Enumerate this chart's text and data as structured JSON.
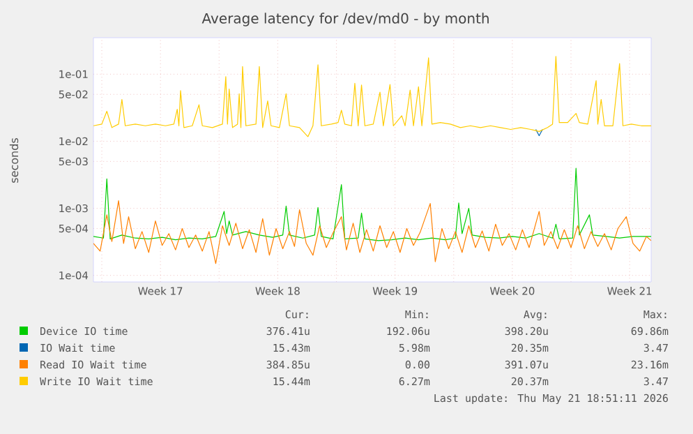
{
  "chart_data": {
    "type": "line",
    "title": "Average latency for /dev/md0 - by month",
    "ylabel": "seconds",
    "log": "y",
    "grid": true,
    "legend": "bottom",
    "xlim": [
      "2026-04-18T12:00",
      "2026-05-21T18:51"
    ],
    "ylim": [
      8e-05,
      0.35
    ],
    "xticks": [
      {
        "value": "2026-04-19",
        "label": null
      },
      {
        "value": "2026-04-22T12:00",
        "label": "Week 17"
      },
      {
        "value": "2026-04-26",
        "label": null
      },
      {
        "value": "2026-04-29T12:00",
        "label": "Week 18"
      },
      {
        "value": "2026-05-03",
        "label": null
      },
      {
        "value": "2026-05-06T12:00",
        "label": "Week 19"
      },
      {
        "value": "2026-05-10",
        "label": null
      },
      {
        "value": "2026-05-13T12:00",
        "label": "Week 20"
      },
      {
        "value": "2026-05-17",
        "label": null
      },
      {
        "value": "2026-05-20T12:00",
        "label": "Week 21"
      }
    ],
    "yticks": [
      {
        "value": 0.0001,
        "label": "1e-04"
      },
      {
        "value": 0.0005,
        "label": "5e-04"
      },
      {
        "value": 0.001,
        "label": "1e-03"
      },
      {
        "value": 0.005,
        "label": "5e-03"
      },
      {
        "value": 0.01,
        "label": "1e-02"
      },
      {
        "value": 0.05,
        "label": "5e-02"
      },
      {
        "value": 0.1,
        "label": "1e-01"
      }
    ],
    "series": [
      {
        "name": "Device IO time",
        "color": "#00cc00",
        "x": [
          "2026-04-18T12:00",
          "2026-04-19T02:24",
          "2026-04-19T07:12",
          "2026-04-19T12:00",
          "2026-04-20T04:48",
          "2026-04-21T00:00",
          "2026-04-21T19:12",
          "2026-04-22T14:24",
          "2026-04-23T09:36",
          "2026-04-24T04:48",
          "2026-04-25T00:00",
          "2026-04-25T19:12",
          "2026-04-26T07:12",
          "2026-04-26T10:48",
          "2026-04-26T14:24",
          "2026-04-26T19:12",
          "2026-04-27T14:24",
          "2026-04-28T09:36",
          "2026-04-29T04:48",
          "2026-04-29T19:12",
          "2026-04-30T00:00",
          "2026-04-30T04:48",
          "2026-05-01T00:00",
          "2026-05-01T16:48",
          "2026-05-01T21:36",
          "2026-05-02T02:24",
          "2026-05-02T19:12",
          "2026-05-03T07:12",
          "2026-05-03T12:00",
          "2026-05-04T07:12",
          "2026-05-04T12:00",
          "2026-05-04T16:48",
          "2026-05-05T12:00",
          "2026-05-06T07:12",
          "2026-05-07T02:24",
          "2026-05-07T21:36",
          "2026-05-08T16:48",
          "2026-05-09T12:00",
          "2026-05-10T02:24",
          "2026-05-10T07:12",
          "2026-05-10T12:00",
          "2026-05-10T21:36",
          "2026-05-11T02:24",
          "2026-05-11T21:36",
          "2026-05-12T16:48",
          "2026-05-13T12:00",
          "2026-05-14T07:12",
          "2026-05-15T02:24",
          "2026-05-15T21:36",
          "2026-05-16T02:24",
          "2026-05-16T07:12",
          "2026-05-17T02:24",
          "2026-05-17T07:12",
          "2026-05-17T12:00",
          "2026-05-18T02:24",
          "2026-05-18T07:12",
          "2026-05-19T02:24",
          "2026-05-19T21:36",
          "2026-05-20T16:48",
          "2026-05-21T18:51"
        ],
        "values": [
          0.00038,
          0.00036,
          0.00275,
          0.00035,
          0.0004,
          0.00036,
          0.00035,
          0.00037,
          0.00034,
          0.00036,
          0.00035,
          0.00038,
          0.0009,
          0.00042,
          0.00065,
          0.0004,
          0.00045,
          0.0004,
          0.00037,
          0.0004,
          0.00108,
          0.0004,
          0.00036,
          0.0004,
          0.00103,
          0.00038,
          0.00035,
          0.00226,
          0.00035,
          0.00036,
          0.00085,
          0.00035,
          0.00033,
          0.00034,
          0.00036,
          0.00034,
          0.00036,
          0.00034,
          0.00036,
          0.0012,
          0.00042,
          0.001,
          0.0004,
          0.00037,
          0.00036,
          0.00038,
          0.00036,
          0.00042,
          0.00036,
          0.00058,
          0.00035,
          0.00036,
          0.00395,
          0.0004,
          0.0008,
          0.0004,
          0.00038,
          0.00036,
          0.00038,
          0.00038
        ]
      },
      {
        "name": "IO Wait time",
        "color": "#0066b3",
        "x": [
          "2026-05-14T21:36",
          "2026-05-15T02:24",
          "2026-05-15T07:12"
        ],
        "values": [
          0.015,
          0.0121,
          0.015
        ]
      },
      {
        "name": "Read IO Wait time",
        "color": "#ff8000",
        "x": [
          "2026-04-18T12:00",
          "2026-04-18T21:36",
          "2026-04-19T07:12",
          "2026-04-19T14:24",
          "2026-04-20T00:00",
          "2026-04-20T07:12",
          "2026-04-20T14:24",
          "2026-04-21T00:00",
          "2026-04-21T09:36",
          "2026-04-21T19:12",
          "2026-04-22T04:48",
          "2026-04-22T14:24",
          "2026-04-23T00:00",
          "2026-04-23T09:36",
          "2026-04-23T19:12",
          "2026-04-24T04:48",
          "2026-04-24T14:24",
          "2026-04-25T00:00",
          "2026-04-25T09:36",
          "2026-04-25T19:12",
          "2026-04-26T04:48",
          "2026-04-26T14:24",
          "2026-04-27T00:00",
          "2026-04-27T09:36",
          "2026-04-27T19:12",
          "2026-04-28T04:48",
          "2026-04-28T14:24",
          "2026-04-29T00:00",
          "2026-04-29T09:36",
          "2026-04-29T19:12",
          "2026-04-30T04:48",
          "2026-04-30T12:00",
          "2026-04-30T19:12",
          "2026-05-01T04:48",
          "2026-05-01T14:24",
          "2026-05-02T00:00",
          "2026-05-02T09:36",
          "2026-05-02T19:12",
          "2026-05-03T07:12",
          "2026-05-03T14:24",
          "2026-05-04T00:00",
          "2026-05-04T09:36",
          "2026-05-04T19:12",
          "2026-05-05T04:48",
          "2026-05-05T14:24",
          "2026-05-06T00:00",
          "2026-05-06T09:36",
          "2026-05-06T19:12",
          "2026-05-07T04:48",
          "2026-05-07T14:24",
          "2026-05-08T00:00",
          "2026-05-08T14:24",
          "2026-05-08T21:36",
          "2026-05-09T07:12",
          "2026-05-09T16:48",
          "2026-05-10T02:24",
          "2026-05-10T12:00",
          "2026-05-10T21:36",
          "2026-05-11T07:12",
          "2026-05-11T16:48",
          "2026-05-12T02:24",
          "2026-05-12T12:00",
          "2026-05-12T21:36",
          "2026-05-13T07:12",
          "2026-05-13T16:48",
          "2026-05-14T02:24",
          "2026-05-14T12:00",
          "2026-05-15T02:24",
          "2026-05-15T09:36",
          "2026-05-15T19:12",
          "2026-05-16T04:48",
          "2026-05-16T14:24",
          "2026-05-17T00:00",
          "2026-05-17T09:36",
          "2026-05-17T19:12",
          "2026-05-18T04:48",
          "2026-05-18T14:24",
          "2026-05-19T00:00",
          "2026-05-19T09:36",
          "2026-05-19T19:12",
          "2026-05-20T07:12",
          "2026-05-20T16:48",
          "2026-05-21T02:24",
          "2026-05-21T12:00",
          "2026-05-21T18:51"
        ],
        "values": [
          0.0003,
          0.00023,
          0.0008,
          0.00032,
          0.0013,
          0.0003,
          0.00075,
          0.00025,
          0.00045,
          0.00022,
          0.00065,
          0.00028,
          0.00042,
          0.00024,
          0.0005,
          0.00026,
          0.0004,
          0.00023,
          0.00045,
          0.00015,
          0.00055,
          0.00028,
          0.0006,
          0.00025,
          0.00048,
          0.00022,
          0.0007,
          0.0002,
          0.0005,
          0.00025,
          0.00045,
          0.00027,
          0.00095,
          0.0003,
          0.0002,
          0.00055,
          0.00026,
          0.00043,
          0.00075,
          0.00024,
          0.0006,
          0.00022,
          0.00048,
          0.00023,
          0.00055,
          0.00026,
          0.00045,
          0.00022,
          0.0005,
          0.00028,
          0.00044,
          0.00118,
          0.00016,
          0.0005,
          0.00025,
          0.00045,
          0.00022,
          0.00055,
          0.00026,
          0.00046,
          0.00023,
          0.00058,
          0.00028,
          0.00042,
          0.00024,
          0.00048,
          0.00026,
          0.0009,
          0.00028,
          0.00045,
          0.00025,
          0.00048,
          0.00026,
          0.00055,
          0.00025,
          0.00045,
          0.00027,
          0.00042,
          0.00024,
          0.0005,
          0.00075,
          0.0003,
          0.00023,
          0.00038,
          0.00033
        ]
      },
      {
        "name": "Write IO Wait time",
        "color": "#ffcc00",
        "x": [
          "2026-04-18T12:00",
          "2026-04-19T00:00",
          "2026-04-19T07:12",
          "2026-04-19T14:24",
          "2026-04-20T00:00",
          "2026-04-20T04:48",
          "2026-04-20T09:36",
          "2026-04-21T00:00",
          "2026-04-21T14:24",
          "2026-04-22T04:48",
          "2026-04-22T19:12",
          "2026-04-23T07:12",
          "2026-04-23T12:00",
          "2026-04-23T14:24",
          "2026-04-23T16:48",
          "2026-04-23T21:36",
          "2026-04-24T09:36",
          "2026-04-24T19:12",
          "2026-04-25T00:00",
          "2026-04-25T14:24",
          "2026-04-26T04:48",
          "2026-04-26T09:36",
          "2026-04-26T12:00",
          "2026-04-26T14:24",
          "2026-04-26T19:12",
          "2026-04-27T02:24",
          "2026-04-27T04:48",
          "2026-04-27T07:12",
          "2026-04-27T09:36",
          "2026-04-27T14:24",
          "2026-04-28T04:48",
          "2026-04-28T09:36",
          "2026-04-28T14:24",
          "2026-04-28T21:36",
          "2026-04-29T02:24",
          "2026-04-29T14:24",
          "2026-04-30T00:00",
          "2026-04-30T04:48",
          "2026-04-30T19:12",
          "2026-05-01T07:12",
          "2026-05-01T14:24",
          "2026-05-01T21:36",
          "2026-05-02T02:24",
          "2026-05-02T16:48",
          "2026-05-03T02:24",
          "2026-05-03T07:12",
          "2026-05-03T12:00",
          "2026-05-03T21:36",
          "2026-05-04T02:24",
          "2026-05-04T07:12",
          "2026-05-04T12:00",
          "2026-05-04T16:48",
          "2026-05-05T04:48",
          "2026-05-05T14:24",
          "2026-05-05T19:12",
          "2026-05-06T04:48",
          "2026-05-06T09:36",
          "2026-05-06T21:36",
          "2026-05-07T02:24",
          "2026-05-07T09:36",
          "2026-05-07T14:24",
          "2026-05-07T21:36",
          "2026-05-08T02:24",
          "2026-05-08T12:00",
          "2026-05-08T16:48",
          "2026-05-09T04:48",
          "2026-05-09T19:12",
          "2026-05-10T09:36",
          "2026-05-11T00:00",
          "2026-05-11T14:24",
          "2026-05-12T04:48",
          "2026-05-12T19:12",
          "2026-05-13T09:36",
          "2026-05-14T00:00",
          "2026-05-14T14:24",
          "2026-05-15T02:24",
          "2026-05-15T14:24",
          "2026-05-15T21:36",
          "2026-05-16T02:24",
          "2026-05-16T07:12",
          "2026-05-16T19:12",
          "2026-05-17T07:12",
          "2026-05-17T12:00",
          "2026-05-18T00:00",
          "2026-05-18T12:00",
          "2026-05-18T14:24",
          "2026-05-18T19:12",
          "2026-05-19T00:00",
          "2026-05-19T12:00",
          "2026-05-19T21:36",
          "2026-05-20T02:24",
          "2026-05-20T14:24",
          "2026-05-21T04:48",
          "2026-05-21T18:51"
        ],
        "values": [
          0.017,
          0.018,
          0.028,
          0.016,
          0.018,
          0.042,
          0.017,
          0.018,
          0.017,
          0.018,
          0.017,
          0.018,
          0.03,
          0.017,
          0.057,
          0.016,
          0.017,
          0.035,
          0.017,
          0.016,
          0.018,
          0.092,
          0.018,
          0.06,
          0.016,
          0.018,
          0.051,
          0.016,
          0.13,
          0.017,
          0.018,
          0.13,
          0.016,
          0.04,
          0.017,
          0.016,
          0.051,
          0.017,
          0.016,
          0.0117,
          0.017,
          0.138,
          0.017,
          0.018,
          0.019,
          0.029,
          0.018,
          0.017,
          0.073,
          0.017,
          0.069,
          0.017,
          0.018,
          0.054,
          0.017,
          0.07,
          0.017,
          0.024,
          0.017,
          0.058,
          0.017,
          0.065,
          0.017,
          0.175,
          0.018,
          0.019,
          0.018,
          0.016,
          0.017,
          0.016,
          0.017,
          0.016,
          0.015,
          0.016,
          0.015,
          0.014,
          0.016,
          0.018,
          0.184,
          0.019,
          0.019,
          0.026,
          0.019,
          0.018,
          0.08,
          0.018,
          0.042,
          0.017,
          0.017,
          0.144,
          0.017,
          0.018,
          0.017,
          0.017
        ]
      }
    ],
    "annotations": [
      "Cur:",
      "Min:",
      "Avg:",
      "Max:",
      "376.41u",
      "192.06u",
      "398.20u",
      "69.86m",
      "15.43m",
      "5.98m",
      "20.35m",
      "3.47",
      "384.85u",
      "0.00",
      "391.07u",
      "23.16m",
      "15.44m",
      "6.27m",
      "20.37m",
      "3.47",
      "Last update: Thu May 21 18:51:11 2026"
    ]
  }
}
